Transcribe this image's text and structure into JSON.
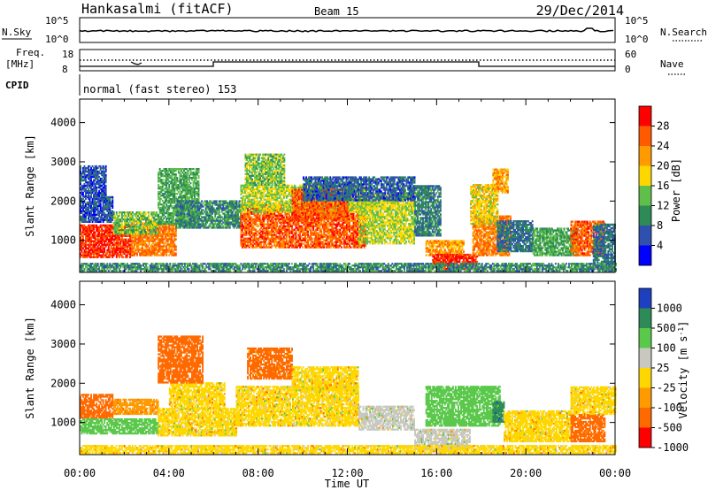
{
  "header": {
    "station": "Hankasalmi (fitACF)",
    "beam": "Beam 15",
    "date": "29/Dec/2014"
  },
  "strip_labels": {
    "nsky": "N.Sky",
    "nsky_ticks": [
      "10^5",
      "10^0"
    ],
    "nsearch": "N.Search",
    "nsearch_ticks": [
      "10^5",
      "10^0"
    ],
    "freq_label_1": "Freq.",
    "freq_label_2": "[MHz]",
    "freq_ticks": [
      "18",
      "8"
    ],
    "nave": "Nave",
    "nave_ticks": [
      "60",
      "0"
    ],
    "cpid": "CPID",
    "mode_text": "normal (fast stereo) 153"
  },
  "chart_data": [
    {
      "type": "heatmap",
      "name": "power",
      "xlabel": "",
      "ylabel": "Slant Range [km]",
      "x_tick_labels": [
        "00:00",
        "04:00",
        "08:00",
        "12:00",
        "16:00",
        "20:00",
        "00:00"
      ],
      "xlim_hours": [
        0,
        24
      ],
      "ylim": [
        180,
        4600
      ],
      "y_ticks": [
        1000,
        2000,
        3000,
        4000
      ],
      "colorbar": {
        "label": "Power [dB]",
        "ticks": [
          "4",
          "8",
          "12",
          "16",
          "20",
          "24",
          "28"
        ],
        "colors": [
          "#0000ff",
          "#3050b0",
          "#2e8b57",
          "#5fbf4a",
          "#ffd700",
          "#ff9a00",
          "#ff5a00",
          "#ff0000"
        ]
      }
    },
    {
      "type": "heatmap",
      "name": "velocity",
      "xlabel": "Time UT",
      "ylabel": "Slant Range [km]",
      "x_tick_labels": [
        "00:00",
        "04:00",
        "08:00",
        "12:00",
        "16:00",
        "20:00",
        "00:00"
      ],
      "xlim_hours": [
        0,
        24
      ],
      "ylim": [
        180,
        4600
      ],
      "y_ticks": [
        1000,
        2000,
        3000,
        4000
      ],
      "colorbar": {
        "label": "Velocity [m s",
        "label_sup": "-1",
        "label_end": "]",
        "ticks": [
          "1000",
          "500",
          "100",
          "25",
          "-25",
          "-100",
          "-500",
          "-1000"
        ],
        "colors": [
          "#1e3fbf",
          "#2e8b57",
          "#5ac84a",
          "#c8c8c0",
          "#ffd700",
          "#ff9a00",
          "#ff6a00",
          "#ff0000"
        ]
      }
    }
  ],
  "power_regions": [
    {
      "t0": 0.0,
      "t1": 2.3,
      "r0": 550,
      "r1": 1400,
      "value": 28
    },
    {
      "t0": 2.3,
      "t1": 4.3,
      "r0": 600,
      "r1": 1450,
      "value": 24
    },
    {
      "t0": 1.5,
      "t1": 3.5,
      "r0": 1150,
      "r1": 1700,
      "value": 14
    },
    {
      "t0": 0.0,
      "t1": 1.5,
      "r0": 1450,
      "r1": 2100,
      "value": 6
    },
    {
      "t0": 0.0,
      "t1": 1.2,
      "r0": 2100,
      "r1": 2900,
      "value": 6
    },
    {
      "t0": 3.5,
      "t1": 5.3,
      "r0": 1400,
      "r1": 2800,
      "value": 12
    },
    {
      "t0": 4.3,
      "t1": 7.2,
      "r0": 1300,
      "r1": 2000,
      "value": 10
    },
    {
      "t0": 7.2,
      "t1": 12.8,
      "r0": 800,
      "r1": 1900,
      "value": 26
    },
    {
      "t0": 7.2,
      "t1": 12.8,
      "r0": 1700,
      "r1": 2400,
      "value": 16
    },
    {
      "t0": 7.4,
      "t1": 9.2,
      "r0": 2400,
      "r1": 3200,
      "value": 14
    },
    {
      "t0": 9.5,
      "t1": 12.0,
      "r0": 1500,
      "r1": 2300,
      "value": 26
    },
    {
      "t0": 12.5,
      "t1": 15.0,
      "r0": 900,
      "r1": 2200,
      "value": 16
    },
    {
      "t0": 10.0,
      "t1": 15.0,
      "r0": 2000,
      "r1": 2600,
      "value": 7
    },
    {
      "t0": 15.0,
      "t1": 16.2,
      "r0": 1100,
      "r1": 2400,
      "value": 9
    },
    {
      "t0": 15.5,
      "t1": 17.2,
      "r0": 600,
      "r1": 1000,
      "value": 22
    },
    {
      "t0": 15.8,
      "t1": 17.8,
      "r0": 250,
      "r1": 650,
      "value": 28
    },
    {
      "t0": 17.6,
      "t1": 19.3,
      "r0": 600,
      "r1": 1600,
      "value": 24
    },
    {
      "t0": 17.5,
      "t1": 18.7,
      "r0": 1400,
      "r1": 2400,
      "value": 18
    },
    {
      "t0": 18.7,
      "t1": 20.3,
      "r0": 700,
      "r1": 1500,
      "value": 8
    },
    {
      "t0": 18.5,
      "t1": 19.2,
      "r0": 2200,
      "r1": 2800,
      "value": 22
    },
    {
      "t0": 20.3,
      "t1": 22.3,
      "r0": 600,
      "r1": 1300,
      "value": 12
    },
    {
      "t0": 22.0,
      "t1": 23.5,
      "r0": 600,
      "r1": 1500,
      "value": 26
    },
    {
      "t0": 23.0,
      "t1": 24.0,
      "r0": 300,
      "r1": 1400,
      "value": 8
    },
    {
      "t0": 0.0,
      "t1": 24.0,
      "r0": 200,
      "r1": 420,
      "value": 10
    }
  ],
  "velocity_regions": [
    {
      "t0": 0.0,
      "t1": 1.5,
      "r0": 1100,
      "r1": 1700,
      "value": -250
    },
    {
      "t0": 0.0,
      "t1": 3.5,
      "r0": 700,
      "r1": 1100,
      "value": 200
    },
    {
      "t0": 1.5,
      "t1": 3.5,
      "r0": 1200,
      "r1": 1600,
      "value": -80
    },
    {
      "t0": 3.5,
      "t1": 7.0,
      "r0": 650,
      "r1": 1350,
      "value": 0
    },
    {
      "t0": 4.0,
      "t1": 6.5,
      "r0": 1350,
      "r1": 2000,
      "value": 0
    },
    {
      "t0": 3.5,
      "t1": 5.5,
      "r0": 2000,
      "r1": 3200,
      "value": -300
    },
    {
      "t0": 7.0,
      "t1": 12.5,
      "r0": 900,
      "r1": 1900,
      "value": 0
    },
    {
      "t0": 7.5,
      "t1": 9.5,
      "r0": 2100,
      "r1": 2900,
      "value": -150
    },
    {
      "t0": 9.5,
      "t1": 12.5,
      "r0": 1800,
      "r1": 2400,
      "value": 0
    },
    {
      "t0": 12.5,
      "t1": 15.0,
      "r0": 800,
      "r1": 1400,
      "value": 70
    },
    {
      "t0": 15.0,
      "t1": 17.5,
      "r0": 300,
      "r1": 800,
      "value": 60
    },
    {
      "t0": 15.5,
      "t1": 18.8,
      "r0": 900,
      "r1": 1900,
      "value": 250
    },
    {
      "t0": 18.5,
      "t1": 19.0,
      "r0": 1000,
      "r1": 1500,
      "value": 900
    },
    {
      "t0": 19.0,
      "t1": 22.0,
      "r0": 500,
      "r1": 1300,
      "value": 0
    },
    {
      "t0": 22.0,
      "t1": 23.5,
      "r0": 500,
      "r1": 1200,
      "value": -200
    },
    {
      "t0": 22.0,
      "t1": 24.0,
      "r0": 1200,
      "r1": 1900,
      "value": 0
    },
    {
      "t0": 0.0,
      "t1": 24.0,
      "r0": 200,
      "r1": 420,
      "value": -20
    }
  ]
}
